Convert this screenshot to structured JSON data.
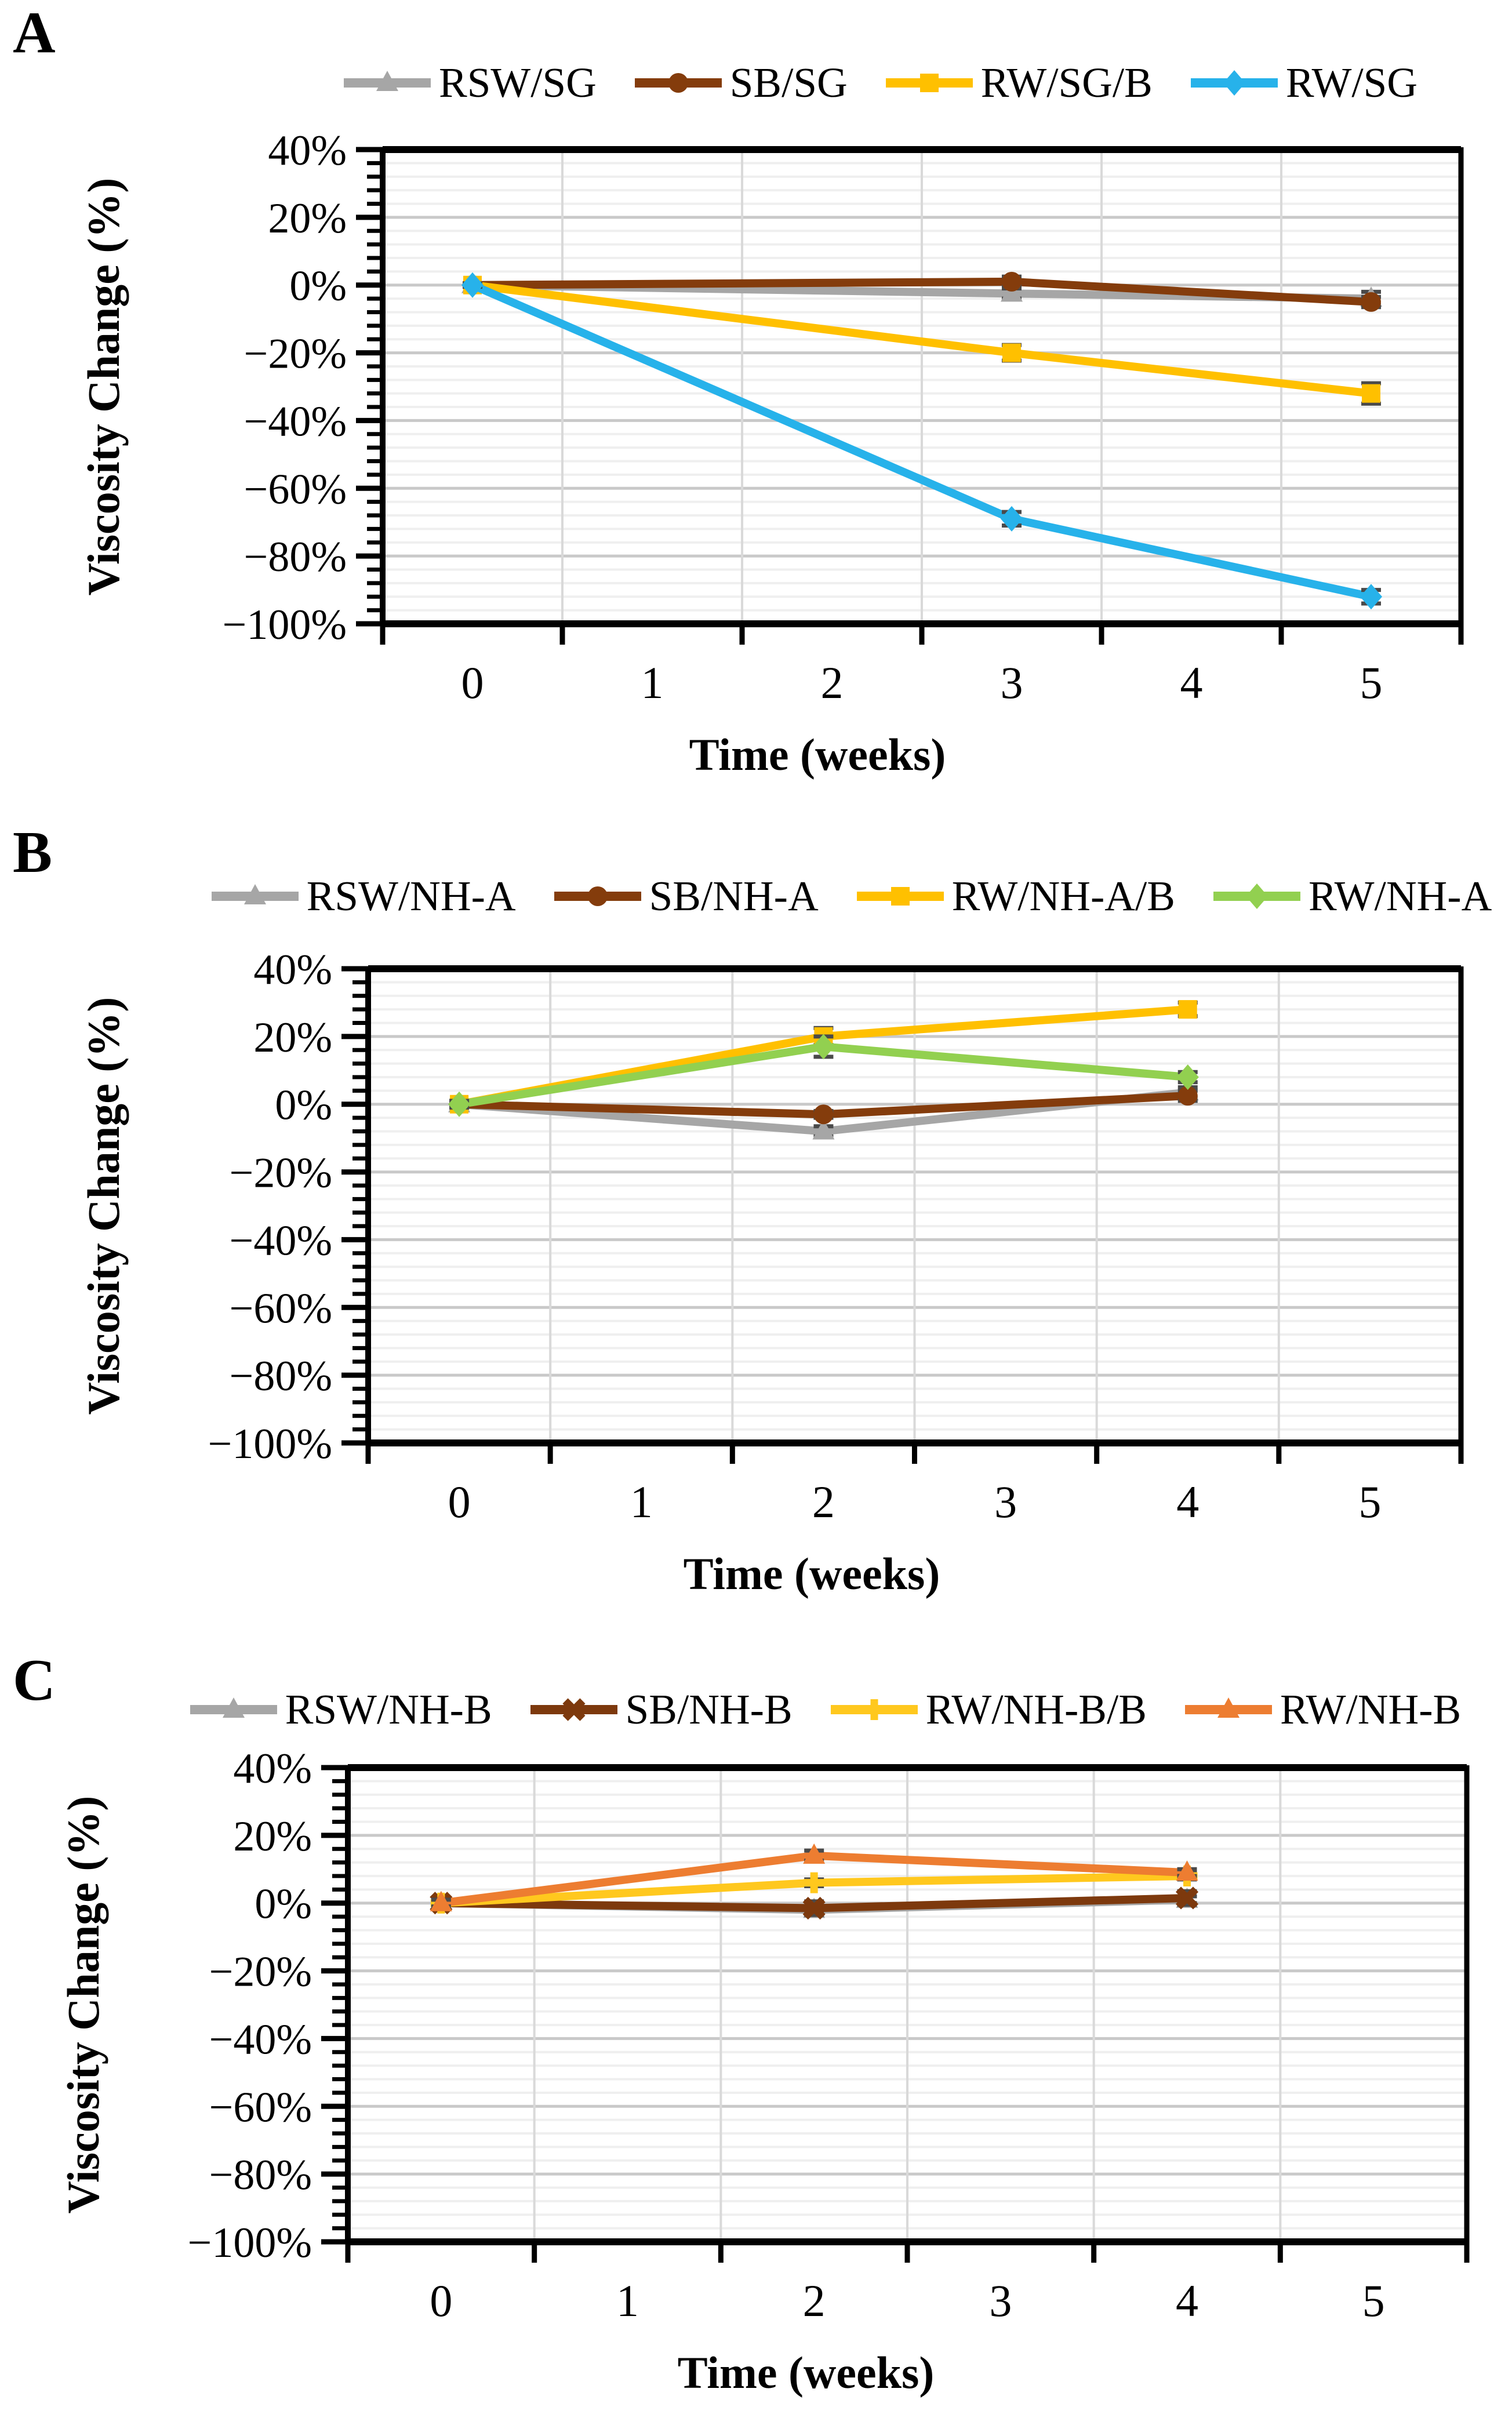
{
  "figure": {
    "panels": [
      {
        "label": "A"
      },
      {
        "label": "B"
      },
      {
        "label": "C"
      }
    ]
  },
  "chart_data": [
    {
      "type": "line",
      "panel": "A",
      "title": "",
      "xlabel": "Time (weeks)",
      "ylabel": "Viscosity Change (%)",
      "x_tick_labels": [
        "0",
        "1",
        "2",
        "3",
        "4",
        "5"
      ],
      "y_tick_labels": [
        "40%",
        "20%",
        "0%",
        "−20%",
        "−40%",
        "−60%",
        "−80%",
        "−100%"
      ],
      "ylim": [
        -100,
        40
      ],
      "y_major_step": 20,
      "y_minor_step": 4,
      "grid": true,
      "legend_position": "top",
      "x_weeks": [
        0,
        3,
        5
      ],
      "series": [
        {
          "name": "RSW/SG",
          "color": "#A6A6A6",
          "marker": "triangle",
          "values_pct": [
            0,
            -2.5,
            -4
          ],
          "errors_pct": [
            0.5,
            1.5,
            2
          ]
        },
        {
          "name": "SB/SG",
          "color": "#843C0C",
          "marker": "circle",
          "values_pct": [
            0,
            1,
            -5
          ],
          "errors_pct": [
            0.5,
            1.5,
            1.5
          ]
        },
        {
          "name": "RW/SG/B",
          "color": "#FFC000",
          "marker": "square",
          "values_pct": [
            0,
            -20,
            -32
          ],
          "errors_pct": [
            0.5,
            2.3,
            3
          ]
        },
        {
          "name": "RW/SG",
          "color": "#27B2EA",
          "marker": "diamond",
          "values_pct": [
            0,
            -69,
            -92
          ],
          "errors_pct": [
            0.5,
            2,
            2
          ]
        }
      ]
    },
    {
      "type": "line",
      "panel": "B",
      "title": "",
      "xlabel": "Time (weeks)",
      "ylabel": "Viscosity Change (%)",
      "x_tick_labels": [
        "0",
        "1",
        "2",
        "3",
        "4",
        "5"
      ],
      "y_tick_labels": [
        "40%",
        "20%",
        "0%",
        "−20%",
        "−40%",
        "−60%",
        "−80%",
        "−100%"
      ],
      "ylim": [
        -100,
        40
      ],
      "y_major_step": 20,
      "y_minor_step": 4,
      "grid": true,
      "legend_position": "top",
      "x_weeks": [
        0,
        2,
        4
      ],
      "series": [
        {
          "name": "RSW/NH-A",
          "color": "#A6A6A6",
          "marker": "triangle",
          "values_pct": [
            0,
            -8,
            3.5
          ],
          "errors_pct": [
            1,
            1.5,
            1.5
          ]
        },
        {
          "name": "SB/NH-A",
          "color": "#843C0C",
          "marker": "circle",
          "values_pct": [
            0,
            -3,
            2.5
          ],
          "errors_pct": [
            0.5,
            1,
            1.5
          ]
        },
        {
          "name": "RW/NH-A/B",
          "color": "#FFC000",
          "marker": "square",
          "values_pct": [
            0,
            20,
            28
          ],
          "errors_pct": [
            0.5,
            2.5,
            2
          ]
        },
        {
          "name": "RW/NH-A",
          "color": "#92D050",
          "marker": "diamond",
          "values_pct": [
            0,
            17,
            8
          ],
          "errors_pct": [
            1,
            3,
            1.5
          ]
        }
      ]
    },
    {
      "type": "line",
      "panel": "C",
      "title": "",
      "xlabel": "Time (weeks)",
      "ylabel": "Viscosity Change (%)",
      "x_tick_labels": [
        "0",
        "1",
        "2",
        "3",
        "4",
        "5"
      ],
      "y_tick_labels": [
        "40%",
        "20%",
        "0%",
        "−20%",
        "−40%",
        "−60%",
        "−80%",
        "−100%"
      ],
      "ylim": [
        -100,
        40
      ],
      "y_major_step": 20,
      "y_minor_step": 4,
      "grid": true,
      "legend_position": "top",
      "x_weeks": [
        0,
        2,
        4
      ],
      "series": [
        {
          "name": "RSW/NH-B",
          "color": "#A6A6A6",
          "marker": "triangle",
          "values_pct": [
            0,
            -2,
            1
          ],
          "errors_pct": [
            0.5,
            1,
            1
          ]
        },
        {
          "name": "SB/NH-B",
          "color": "#7D390D",
          "marker": "x",
          "values_pct": [
            0,
            -1.5,
            1.5
          ],
          "errors_pct": [
            1,
            2,
            2
          ]
        },
        {
          "name": "RW/NH-B/B",
          "color": "#FFC81E",
          "marker": "plus",
          "values_pct": [
            0,
            6,
            8
          ],
          "errors_pct": [
            1,
            1,
            1
          ]
        },
        {
          "name": "RW/NH-B",
          "color": "#ED7D31",
          "marker": "triangle",
          "values_pct": [
            0,
            14,
            9
          ],
          "errors_pct": [
            1,
            1.5,
            1
          ]
        }
      ]
    }
  ]
}
